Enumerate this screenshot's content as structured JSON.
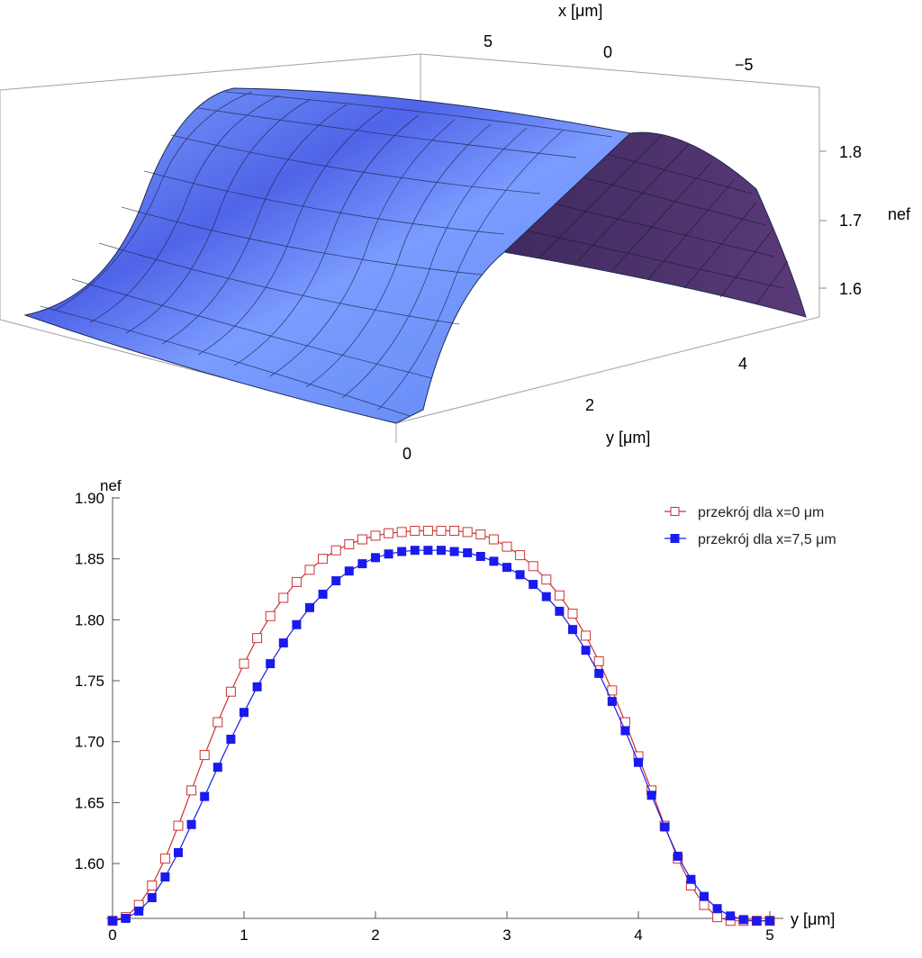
{
  "chart_data": [
    {
      "type": "surface",
      "axes": {
        "x": {
          "label": "x [μm]",
          "ticks": [
            "5",
            "0",
            "−5"
          ],
          "range": [
            -7.5,
            7.5
          ]
        },
        "y": {
          "label": "y [μm]",
          "ticks": [
            "0",
            "2",
            "4"
          ],
          "range": [
            0,
            5
          ]
        },
        "z": {
          "label": "nef",
          "ticks": [
            "1.6",
            "1.7",
            "1.8"
          ],
          "range": [
            1.55,
            1.87
          ]
        }
      },
      "mesh": true,
      "colors": {
        "surface_light": "#7fa6ff",
        "surface_mid": "#5a7cf2",
        "surface_dark": "#3b4fd6",
        "back_face": "#4a2f6c",
        "mesh_line": "#1f2a55",
        "box": "#9a9a9a"
      }
    },
    {
      "type": "line",
      "axes": {
        "x": {
          "label": "y [μm]",
          "ticks": [
            "0",
            "1",
            "2",
            "3",
            "4",
            "5"
          ],
          "range": [
            0,
            5
          ]
        },
        "y": {
          "label": "nef",
          "ticks": [
            "1.60",
            "1.65",
            "1.70",
            "1.75",
            "1.80",
            "1.85",
            "1.90"
          ],
          "range": [
            1.555,
            1.9
          ]
        }
      },
      "legend": {
        "position": "top-right"
      },
      "x": [
        0.0,
        0.1,
        0.2,
        0.3,
        0.4,
        0.5,
        0.6,
        0.7,
        0.8,
        0.9,
        1.0,
        1.1,
        1.2,
        1.3,
        1.4,
        1.5,
        1.6,
        1.7,
        1.8,
        1.9,
        2.0,
        2.1,
        2.2,
        2.3,
        2.4,
        2.5,
        2.6,
        2.7,
        2.8,
        2.9,
        3.0,
        3.1,
        3.2,
        3.3,
        3.4,
        3.5,
        3.6,
        3.7,
        3.8,
        3.9,
        4.0,
        4.1,
        4.2,
        4.3,
        4.4,
        4.5,
        4.6,
        4.7,
        4.8,
        4.9,
        5.0
      ],
      "series": [
        {
          "name": "przekrój dla x=0 μm",
          "color": "#cc3333",
          "marker": "open-square",
          "values": [
            1.553,
            1.556,
            1.566,
            1.582,
            1.604,
            1.631,
            1.66,
            1.689,
            1.716,
            1.741,
            1.764,
            1.785,
            1.803,
            1.818,
            1.831,
            1.841,
            1.85,
            1.857,
            1.862,
            1.866,
            1.869,
            1.871,
            1.872,
            1.873,
            1.873,
            1.873,
            1.873,
            1.872,
            1.87,
            1.866,
            1.86,
            1.853,
            1.844,
            1.833,
            1.82,
            1.805,
            1.787,
            1.766,
            1.742,
            1.716,
            1.688,
            1.66,
            1.631,
            1.604,
            1.582,
            1.566,
            1.556,
            1.553,
            1.553,
            1.553,
            1.553
          ]
        },
        {
          "name": "przekrój dla x=7,5 μm",
          "color": "#1a1aee",
          "marker": "filled-square",
          "values": [
            1.553,
            1.555,
            1.561,
            1.572,
            1.589,
            1.609,
            1.632,
            1.655,
            1.679,
            1.702,
            1.724,
            1.745,
            1.764,
            1.781,
            1.796,
            1.81,
            1.821,
            1.832,
            1.84,
            1.846,
            1.851,
            1.854,
            1.856,
            1.857,
            1.857,
            1.857,
            1.856,
            1.855,
            1.852,
            1.848,
            1.843,
            1.837,
            1.829,
            1.819,
            1.807,
            1.792,
            1.775,
            1.756,
            1.733,
            1.709,
            1.683,
            1.656,
            1.63,
            1.606,
            1.587,
            1.573,
            1.563,
            1.557,
            1.554,
            1.553,
            1.553
          ]
        }
      ]
    }
  ]
}
